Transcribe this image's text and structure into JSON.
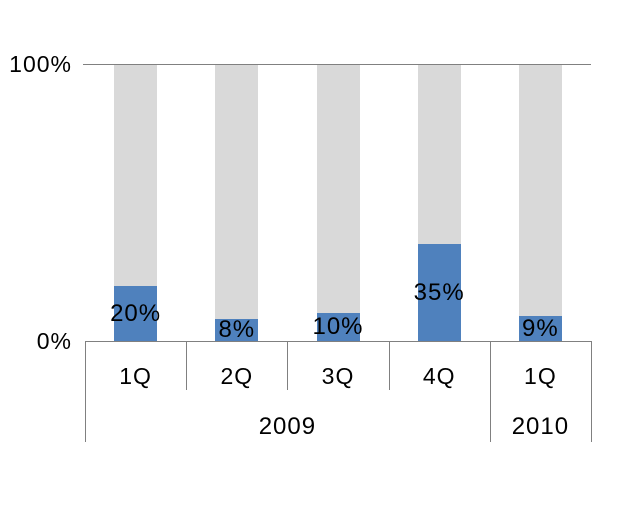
{
  "chart_data": {
    "type": "bar",
    "variant": "100-percent-stacked-column",
    "title": "",
    "categories": [
      {
        "quarter": "1Q",
        "year": "2009",
        "value": 20,
        "label": "20%"
      },
      {
        "quarter": "2Q",
        "year": "2009",
        "value": 8,
        "label": "8%"
      },
      {
        "quarter": "3Q",
        "year": "2009",
        "value": 10,
        "label": "10%"
      },
      {
        "quarter": "4Q",
        "year": "2009",
        "value": 35,
        "label": "35%"
      },
      {
        "quarter": "1Q",
        "year": "2010",
        "value": 9,
        "label": "9%"
      }
    ],
    "groups": [
      {
        "label": "2009",
        "count": 4
      },
      {
        "label": "2010",
        "count": 1
      }
    ],
    "yticks": [
      {
        "label": "0%",
        "value": 0
      },
      {
        "label": "100%",
        "value": 100
      }
    ],
    "ylim": [
      0,
      100
    ],
    "legend": "none",
    "grid": "top-gridline-only",
    "colors": {
      "value_segment": "#4F81BD",
      "remainder_segment": "#D9D9D9",
      "axis_line": "#808080",
      "label_text": "#000000",
      "background": "#FFFFFF"
    }
  }
}
